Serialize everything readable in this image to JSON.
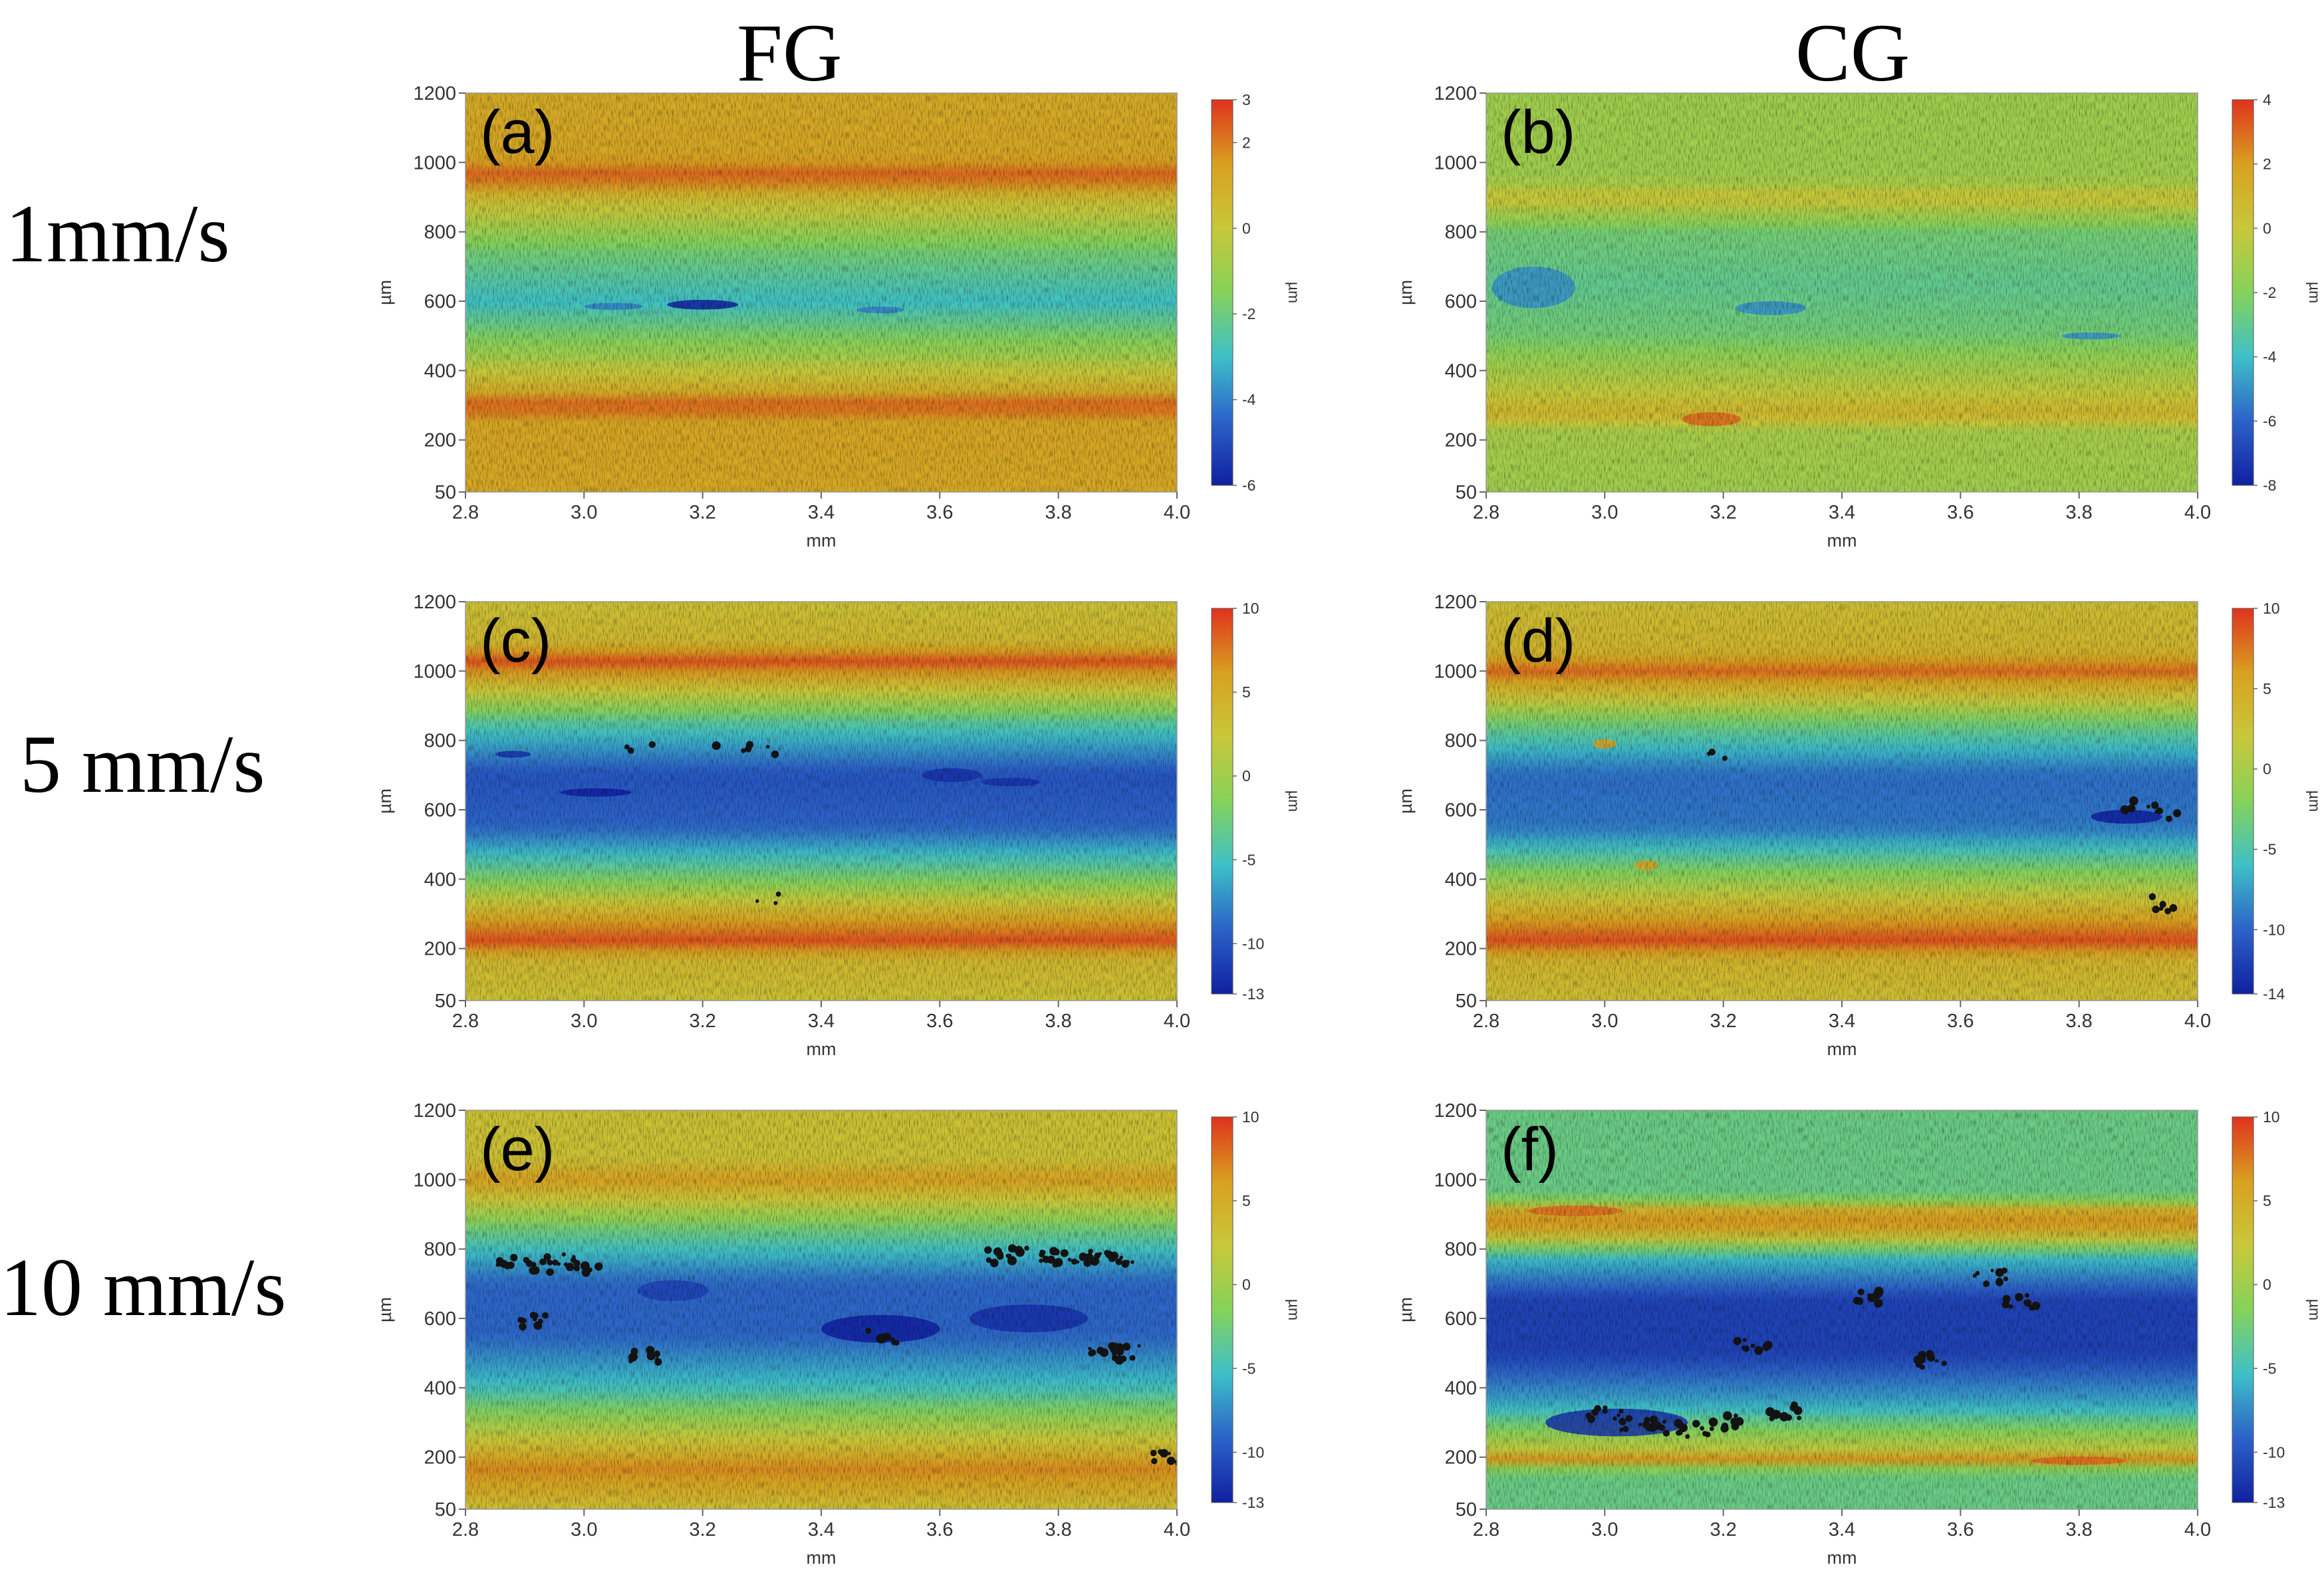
{
  "columns": [
    "FG",
    "CG"
  ],
  "rows": [
    "1mm/s",
    "5 mm/s",
    "10 mm/s"
  ],
  "colors": {
    "map_red": "#e0321e",
    "map_orange": "#d8a020",
    "map_yellow": "#c8c83a",
    "map_green": "#86d25a",
    "map_cyan": "#3ec0c8",
    "map_blue": "#2c62c8",
    "map_darkblue": "#1020a0",
    "pit": "#141414"
  },
  "chart_data": [
    {
      "type": "heatmap",
      "label": "(a)",
      "column": "FG",
      "row": "1mm/s",
      "xlabel": "mm",
      "ylabel": "µm",
      "xlim": [
        2.8,
        4.0
      ],
      "ylim": [
        50,
        1200
      ],
      "xticks": [
        "2.8",
        "3.0",
        "3.2",
        "3.4",
        "3.6",
        "3.8",
        "4.0"
      ],
      "yticks": [
        "50",
        "200",
        "400",
        "600",
        "800",
        "1000",
        "1200"
      ],
      "colorbar": {
        "label": "µm",
        "min": -6,
        "max": 3,
        "ticks": [
          "3",
          "2",
          "0",
          "-2",
          "-4",
          "-6"
        ]
      },
      "profile": [
        [
          50,
          1.2
        ],
        [
          250,
          1.3
        ],
        [
          300,
          2.5
        ],
        [
          340,
          1.0
        ],
        [
          450,
          -1.0
        ],
        [
          600,
          -3.0
        ],
        [
          750,
          -1.8
        ],
        [
          900,
          0.5
        ],
        [
          960,
          2.5
        ],
        [
          1010,
          1.3
        ],
        [
          1200,
          1.1
        ]
      ],
      "pits": [
        [
          3.2,
          590,
          0.06,
          14,
          -6
        ],
        [
          3.05,
          585,
          0.05,
          10,
          -4
        ],
        [
          3.5,
          575,
          0.04,
          10,
          -4
        ]
      ],
      "blackspots": []
    },
    {
      "type": "heatmap",
      "label": "(b)",
      "column": "CG",
      "row": "1mm/s",
      "xlabel": "mm",
      "ylabel": "µm",
      "xlim": [
        2.8,
        4.0
      ],
      "ylim": [
        50,
        1200
      ],
      "xticks": [
        "2.8",
        "3.0",
        "3.2",
        "3.4",
        "3.6",
        "3.8",
        "4.0"
      ],
      "yticks": [
        "50",
        "200",
        "400",
        "600",
        "800",
        "1000",
        "1200"
      ],
      "colorbar": {
        "label": "µm",
        "min": -8,
        "max": 4,
        "ticks": [
          "4",
          "2",
          "0",
          "-2",
          "-4",
          "-6",
          "-8"
        ]
      },
      "profile": [
        [
          50,
          -1.2
        ],
        [
          230,
          -1.0
        ],
        [
          270,
          1.0
        ],
        [
          330,
          0.0
        ],
        [
          500,
          -2.5
        ],
        [
          650,
          -3.0
        ],
        [
          800,
          -2.5
        ],
        [
          900,
          0.3
        ],
        [
          950,
          -1.2
        ],
        [
          1200,
          -1.2
        ]
      ],
      "pits": [
        [
          2.88,
          640,
          0.07,
          60,
          -5
        ],
        [
          3.28,
          580,
          0.06,
          20,
          -5
        ],
        [
          3.82,
          500,
          0.05,
          10,
          -5
        ],
        [
          3.18,
          260,
          0.05,
          20,
          3
        ]
      ],
      "blackspots": []
    },
    {
      "type": "heatmap",
      "label": "(c)",
      "column": "FG",
      "row": "5 mm/s",
      "xlabel": "mm",
      "ylabel": "µm",
      "xlim": [
        2.8,
        4.0
      ],
      "ylim": [
        50,
        1200
      ],
      "xticks": [
        "2.8",
        "3.0",
        "3.2",
        "3.4",
        "3.6",
        "3.8",
        "4.0"
      ],
      "yticks": [
        "50",
        "200",
        "400",
        "600",
        "800",
        "1000",
        "1200"
      ],
      "colorbar": {
        "label": "µm",
        "min": -13,
        "max": 10,
        "ticks": [
          "10",
          "5",
          "0",
          "-5",
          "-10",
          "-13"
        ]
      },
      "profile": [
        [
          50,
          3.0
        ],
        [
          170,
          4.0
        ],
        [
          220,
          9.0
        ],
        [
          280,
          6.0
        ],
        [
          400,
          -2.0
        ],
        [
          550,
          -9.0
        ],
        [
          700,
          -10.0
        ],
        [
          850,
          -4.0
        ],
        [
          980,
          5.0
        ],
        [
          1030,
          9.0
        ],
        [
          1080,
          4.0
        ],
        [
          1200,
          3.0
        ]
      ],
      "pits": [
        [
          3.02,
          650,
          0.06,
          12,
          -13
        ],
        [
          3.62,
          700,
          0.05,
          20,
          -12
        ],
        [
          3.72,
          680,
          0.05,
          12,
          -12
        ],
        [
          2.88,
          760,
          0.03,
          10,
          -12
        ]
      ],
      "blackspots": [
        [
          3.1,
          780
        ],
        [
          3.25,
          790
        ],
        [
          3.3,
          770
        ],
        [
          3.3,
          350
        ]
      ]
    },
    {
      "type": "heatmap",
      "label": "(d)",
      "column": "CG",
      "row": "5 mm/s",
      "xlabel": "mm",
      "ylabel": "µm",
      "xlim": [
        2.8,
        4.0
      ],
      "ylim": [
        50,
        1200
      ],
      "xticks": [
        "2.8",
        "3.0",
        "3.2",
        "3.4",
        "3.6",
        "3.8",
        "4.0"
      ],
      "yticks": [
        "50",
        "200",
        "400",
        "600",
        "800",
        "1000",
        "1200"
      ],
      "colorbar": {
        "label": "µm",
        "min": -14,
        "max": 10,
        "ticks": [
          "10",
          "5",
          "0",
          "-5",
          "-10",
          "-14"
        ]
      },
      "profile": [
        [
          50,
          3.0
        ],
        [
          170,
          4.0
        ],
        [
          220,
          9.0
        ],
        [
          280,
          6.0
        ],
        [
          400,
          -1.0
        ],
        [
          550,
          -9.0
        ],
        [
          700,
          -9.5
        ],
        [
          850,
          -3.0
        ],
        [
          960,
          5.0
        ],
        [
          1000,
          8.0
        ],
        [
          1060,
          4.0
        ],
        [
          1200,
          3.0
        ]
      ],
      "pits": [
        [
          3.0,
          790,
          0.02,
          14,
          6
        ],
        [
          3.07,
          440,
          0.02,
          14,
          6
        ],
        [
          3.88,
          580,
          0.06,
          20,
          -14
        ]
      ],
      "blackspots": [
        [
          3.92,
          610
        ],
        [
          3.95,
          590
        ],
        [
          3.9,
          620
        ],
        [
          3.93,
          330
        ],
        [
          3.95,
          310
        ],
        [
          3.2,
          750
        ]
      ]
    },
    {
      "type": "heatmap",
      "label": "(e)",
      "column": "FG",
      "row": "10 mm/s",
      "xlabel": "mm",
      "ylabel": "µm",
      "xlim": [
        2.8,
        4.0
      ],
      "ylim": [
        50,
        1200
      ],
      "xticks": [
        "2.8",
        "3.0",
        "3.2",
        "3.4",
        "3.6",
        "3.8",
        "4.0"
      ],
      "yticks": [
        "50",
        "200",
        "400",
        "600",
        "800",
        "1000",
        "1200"
      ],
      "colorbar": {
        "label": "µm",
        "min": -13,
        "max": 10,
        "ticks": [
          "10",
          "5",
          "0",
          "-5",
          "-10",
          "-13"
        ]
      },
      "profile": [
        [
          50,
          3.0
        ],
        [
          100,
          5.0
        ],
        [
          170,
          7.0
        ],
        [
          240,
          3.0
        ],
        [
          400,
          -5.0
        ],
        [
          550,
          -9.0
        ],
        [
          700,
          -9.0
        ],
        [
          850,
          -3.0
        ],
        [
          950,
          3.0
        ],
        [
          1000,
          6.0
        ],
        [
          1060,
          3.0
        ],
        [
          1200,
          3.0
        ]
      ],
      "pits": [
        [
          3.5,
          570,
          0.1,
          40,
          -13
        ],
        [
          3.75,
          600,
          0.1,
          40,
          -12
        ],
        [
          3.15,
          680,
          0.06,
          30,
          -11
        ]
      ],
      "blackspots": [
        [
          2.88,
          770
        ],
        [
          2.92,
          750
        ],
        [
          2.96,
          770
        ],
        [
          3.0,
          750
        ],
        [
          3.7,
          780
        ],
        [
          3.75,
          785
        ],
        [
          3.8,
          775
        ],
        [
          3.85,
          780
        ],
        [
          3.9,
          770
        ],
        [
          3.92,
          500
        ],
        [
          3.88,
          520
        ],
        [
          2.92,
          590
        ],
        [
          3.5,
          550
        ],
        [
          3.1,
          490
        ],
        [
          3.98,
          200
        ]
      ],
      "blackspots_large": true
    },
    {
      "type": "heatmap",
      "label": "(f)",
      "column": "CG",
      "row": "10 mm/s",
      "xlabel": "mm",
      "ylabel": "µm",
      "xlim": [
        2.8,
        4.0
      ],
      "ylim": [
        50,
        1200
      ],
      "xticks": [
        "2.8",
        "3.0",
        "3.2",
        "3.4",
        "3.6",
        "3.8",
        "4.0"
      ],
      "yticks": [
        "50",
        "200",
        "400",
        "600",
        "800",
        "1000",
        "1200"
      ],
      "colorbar": {
        "label": "µm",
        "min": -13,
        "max": 10,
        "ticks": [
          "10",
          "5",
          "0",
          "-5",
          "-10",
          "-13"
        ]
      },
      "profile": [
        [
          50,
          -3.0
        ],
        [
          160,
          -3.0
        ],
        [
          190,
          7.0
        ],
        [
          220,
          2.0
        ],
        [
          350,
          -6.0
        ],
        [
          500,
          -11.0
        ],
        [
          650,
          -11.0
        ],
        [
          780,
          -5.0
        ],
        [
          850,
          5.0
        ],
        [
          900,
          7.0
        ],
        [
          950,
          -3.0
        ],
        [
          1200,
          -3.0
        ]
      ],
      "pits": [
        [
          3.02,
          300,
          0.12,
          40,
          -12
        ],
        [
          3.8,
          190,
          0.08,
          12,
          8
        ],
        [
          2.95,
          910,
          0.08,
          15,
          8
        ]
      ],
      "blackspots": [
        [
          3.0,
          330
        ],
        [
          3.05,
          300
        ],
        [
          3.1,
          290
        ],
        [
          3.15,
          280
        ],
        [
          3.2,
          300
        ],
        [
          3.3,
          330
        ],
        [
          3.45,
          660
        ],
        [
          3.65,
          720
        ],
        [
          3.7,
          650
        ],
        [
          3.55,
          480
        ],
        [
          3.25,
          520
        ]
      ],
      "blackspots_large": true
    }
  ]
}
